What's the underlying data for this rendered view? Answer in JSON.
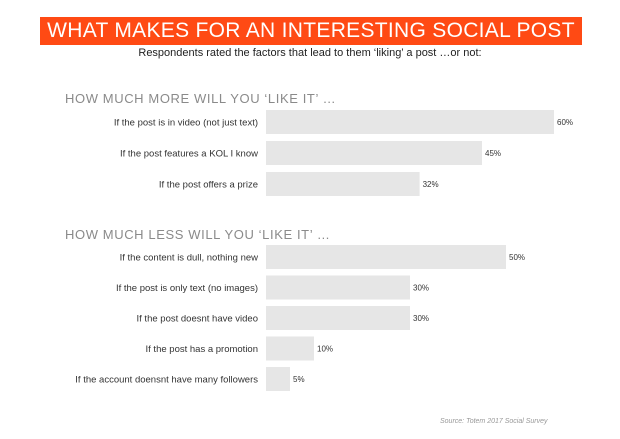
{
  "title": "WHAT MAKES FOR AN INTERESTING SOCIAL POST",
  "subtitle": "Respondents rated the factors that lead to them ‘liking’ a post …or not:",
  "source": "Source: Totem 2017 Social Survey",
  "colors": {
    "banner": "#ff4a14",
    "bar": "#e6e6e6",
    "heading": "#8a8a8a",
    "label": "#333333"
  },
  "chart_data": [
    {
      "type": "bar",
      "orientation": "horizontal",
      "title": "HOW MUCH MORE WILL YOU ‘LIKE IT’ …",
      "categories": [
        "If the post is in video (not just text)",
        "If the post features a KOL I know",
        "If the post offers a prize"
      ],
      "values": [
        60,
        45,
        32
      ],
      "value_labels": [
        "60%",
        "45%",
        "32%"
      ],
      "unit": "%",
      "xlim": [
        0,
        60
      ]
    },
    {
      "type": "bar",
      "orientation": "horizontal",
      "title": "HOW MUCH LESS WILL YOU ‘LIKE IT’ …",
      "categories": [
        "If the content is dull, nothing new",
        "If the post is only text (no images)",
        "If the post doesnt have video",
        "If the post has a promotion",
        "If the account doensnt have many followers"
      ],
      "values": [
        50,
        30,
        30,
        10,
        5
      ],
      "value_labels": [
        "50%",
        "30%",
        "30%",
        "10%",
        "5%"
      ],
      "unit": "%",
      "xlim": [
        0,
        50
      ]
    }
  ]
}
